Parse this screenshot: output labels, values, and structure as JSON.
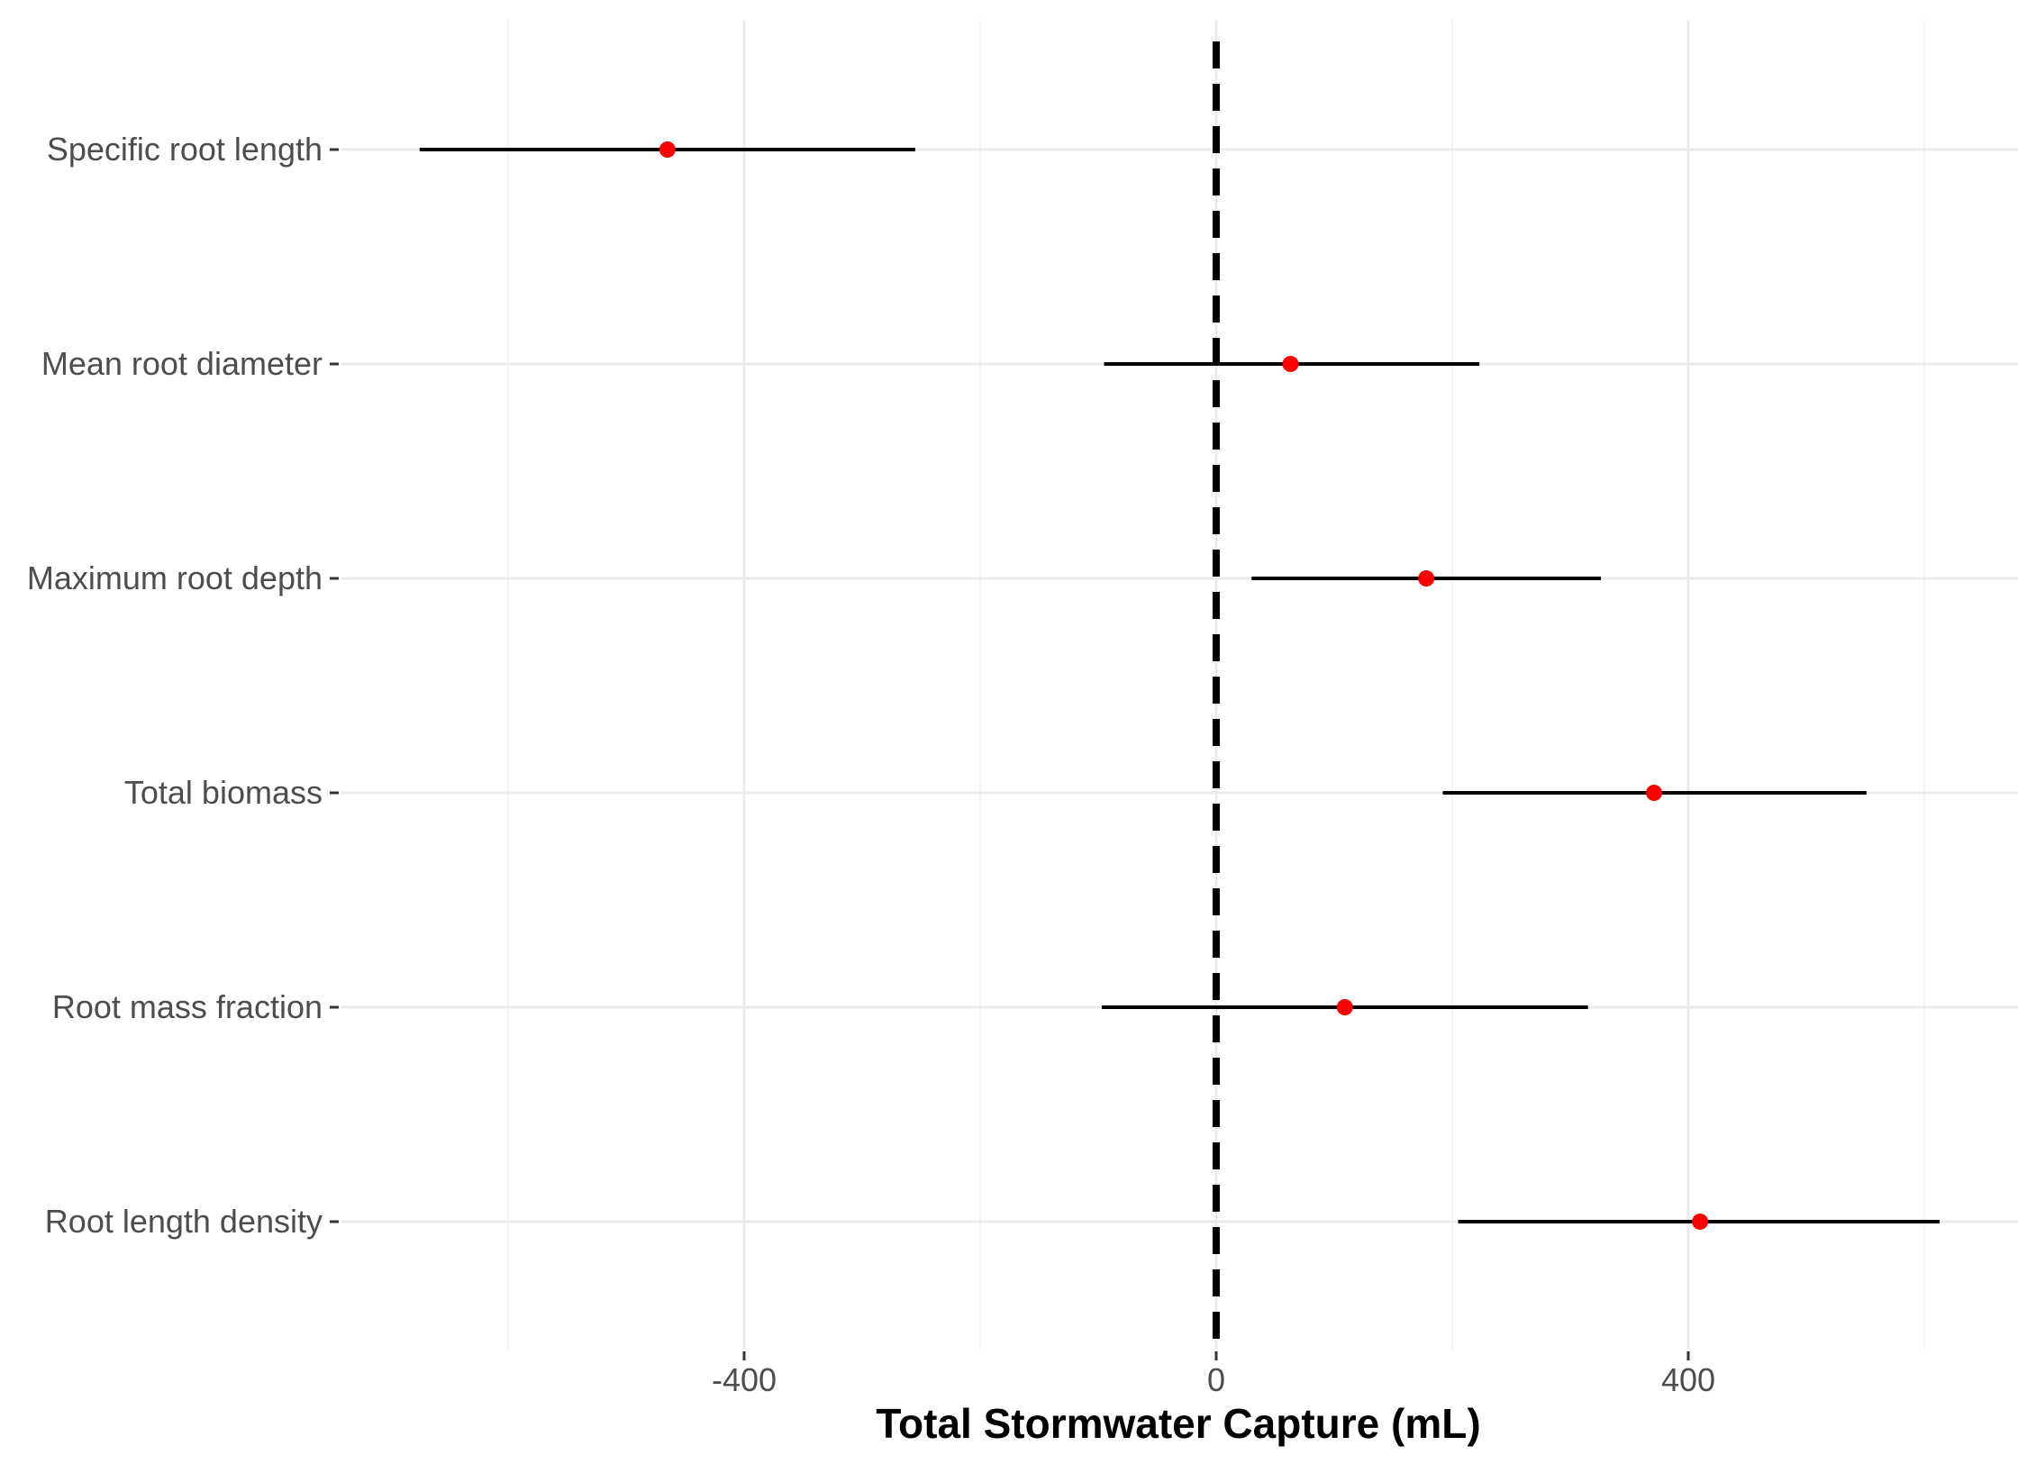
{
  "chart_data": {
    "type": "forest",
    "xlabel": "Total Stormwater Capture (mL)",
    "ylabel": "",
    "title": "",
    "xlim": [
      -680,
      680
    ],
    "x_major_ticks": [
      -400,
      0,
      400
    ],
    "x_minor_gridlines": [
      -600,
      -200,
      200,
      600
    ],
    "reference_line": {
      "x": 0,
      "style": "dashed",
      "color": "#000000"
    },
    "grid": true,
    "legend": "none",
    "point_color": "#ff0000",
    "interval_color": "#000000",
    "categories": [
      "Specific root length",
      "Mean root diameter",
      "Maximum root depth",
      "Total biomass",
      "Root mass fraction",
      "Root length density"
    ],
    "estimates": [
      -465,
      63,
      178,
      371,
      109,
      410
    ],
    "lower": [
      -675,
      -95,
      30,
      192,
      -97,
      205
    ],
    "upper": [
      -255,
      223,
      326,
      551,
      315,
      613
    ]
  }
}
